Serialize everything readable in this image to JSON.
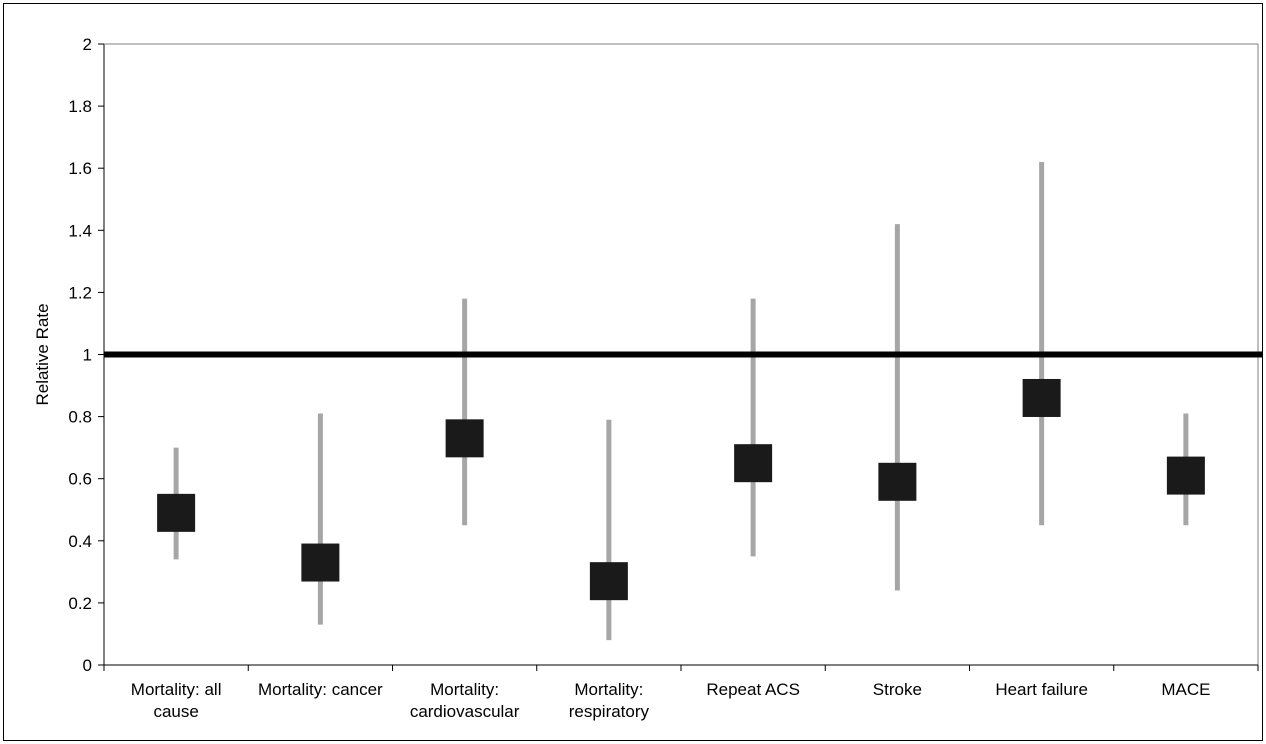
{
  "chart_data": {
    "type": "scatter",
    "ylabel": "Relative Rate",
    "ylim": [
      0,
      2
    ],
    "yticks": [
      "0",
      "0.2",
      "0.4",
      "0.6",
      "0.8",
      "1",
      "1.2",
      "1.4",
      "1.6",
      "1.8",
      "2"
    ],
    "reference_line": 1,
    "categories": [
      [
        "Mortality: all",
        "cause"
      ],
      [
        "Mortality: cancer"
      ],
      [
        "Mortality:",
        "cardiovascular"
      ],
      [
        "Mortality:",
        "respiratory"
      ],
      [
        "Repeat ACS"
      ],
      [
        "Stroke"
      ],
      [
        "Heart failure"
      ],
      [
        "MACE"
      ]
    ],
    "values": [
      0.49,
      0.33,
      0.73,
      0.27,
      0.65,
      0.59,
      0.86,
      0.61
    ],
    "ci_low": [
      0.34,
      0.13,
      0.45,
      0.08,
      0.35,
      0.24,
      0.45,
      0.45
    ],
    "ci_high": [
      0.7,
      0.81,
      1.18,
      0.79,
      1.18,
      1.42,
      1.62,
      0.81
    ],
    "grid": false,
    "colors": {
      "marker": "#1a1a1a",
      "ci": "#a6a6a6",
      "reference": "#000000",
      "axes": "#808080"
    }
  }
}
